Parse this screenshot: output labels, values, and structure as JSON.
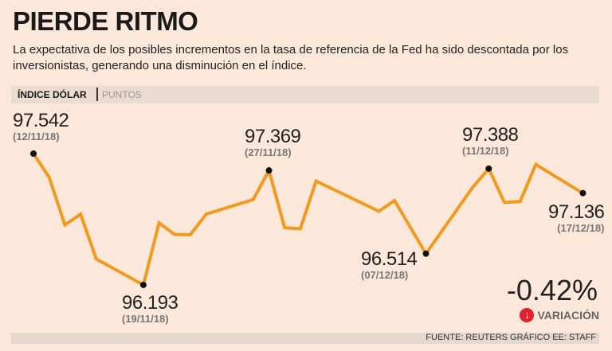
{
  "title": "PIERDE RITMO",
  "subtitle": "La expectativa de los posibles incrementos en la tasa de referencia de la Fed ha sido descontada por los inversionistas, generando una disminución en el índice.",
  "source": "FUENTE: REUTERS GRÁFICO EE: STAFF",
  "change": {
    "value": "-0.42%",
    "label": "VARIACIÓN",
    "icon": "arrow-down-circle-icon",
    "icon_color": "#e3202c"
  },
  "chart_data": {
    "type": "line",
    "title": "ÍNDICE DÓLAR",
    "unit": "PUNTOS",
    "line_color": "#f39a1e",
    "grid": false,
    "points": [
      {
        "date": "2018-11-12",
        "value": 97.542
      },
      {
        "date": "2018-11-13",
        "value": 97.3
      },
      {
        "date": "2018-11-14",
        "value": 96.81
      },
      {
        "date": "2018-11-15",
        "value": 96.92
      },
      {
        "date": "2018-11-16",
        "value": 96.46
      },
      {
        "date": "2018-11-19",
        "value": 96.193
      },
      {
        "date": "2018-11-20",
        "value": 96.83
      },
      {
        "date": "2018-11-21",
        "value": 96.71
      },
      {
        "date": "2018-11-22",
        "value": 96.71
      },
      {
        "date": "2018-11-23",
        "value": 96.92
      },
      {
        "date": "2018-11-26",
        "value": 97.07
      },
      {
        "date": "2018-11-27",
        "value": 97.369
      },
      {
        "date": "2018-11-28",
        "value": 96.78
      },
      {
        "date": "2018-11-29",
        "value": 96.77
      },
      {
        "date": "2018-11-30",
        "value": 97.26
      },
      {
        "date": "2018-12-04",
        "value": 96.95
      },
      {
        "date": "2018-12-05",
        "value": 97.06
      },
      {
        "date": "2018-12-07",
        "value": 96.514
      },
      {
        "date": "2018-12-10",
        "value": 97.2
      },
      {
        "date": "2018-12-11",
        "value": 97.388
      },
      {
        "date": "2018-12-12",
        "value": 97.04
      },
      {
        "date": "2018-12-13",
        "value": 97.05
      },
      {
        "date": "2018-12-14",
        "value": 97.43
      },
      {
        "date": "2018-12-17",
        "value": 97.136
      }
    ],
    "annotations": [
      {
        "value": "97.542",
        "date": "(12/11/18)",
        "point_date": "2018-11-12"
      },
      {
        "value": "96.193",
        "date": "(19/11/18)",
        "point_date": "2018-11-19"
      },
      {
        "value": "97.369",
        "date": "(27/11/18)",
        "point_date": "2018-11-27"
      },
      {
        "value": "96.514",
        "date": "(07/12/18)",
        "point_date": "2018-12-07"
      },
      {
        "value": "97.388",
        "date": "(11/12/18)",
        "point_date": "2018-12-11"
      },
      {
        "value": "97.136",
        "date": "(17/12/18)",
        "point_date": "2018-12-17"
      }
    ]
  }
}
